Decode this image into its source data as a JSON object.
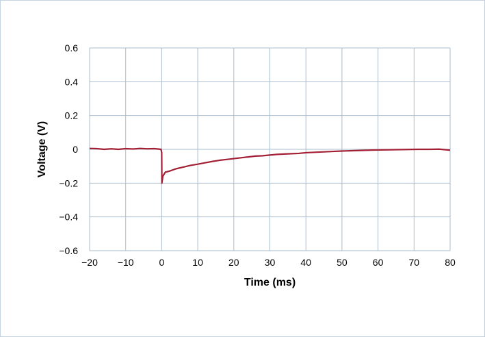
{
  "chart_data": {
    "type": "line",
    "title": "",
    "xlabel": "Time (ms)",
    "ylabel": "Voltage (V)",
    "xlim": [
      -20,
      80
    ],
    "ylim": [
      -0.6,
      0.6
    ],
    "x_ticks": [
      -20,
      -10,
      0,
      10,
      20,
      30,
      40,
      50,
      60,
      70,
      80
    ],
    "x_tick_labels": [
      "−20",
      "−10",
      "0",
      "10",
      "20",
      "30",
      "40",
      "50",
      "60",
      "70",
      "80"
    ],
    "y_ticks": [
      -0.6,
      -0.4,
      -0.2,
      0,
      0.2,
      0.4,
      0.6
    ],
    "y_tick_labels": [
      "−0.6",
      "−0.4",
      "−0.2",
      "0",
      "0.2",
      "0.4",
      "0.6"
    ],
    "grid": true,
    "legend": "none",
    "series": [
      {
        "color": "#a31f34",
        "points": [
          [
            -20,
            0.005
          ],
          [
            -18,
            0.004
          ],
          [
            -16,
            0.0
          ],
          [
            -14,
            0.003
          ],
          [
            -12,
            0.0
          ],
          [
            -10,
            0.004
          ],
          [
            -8,
            0.002
          ],
          [
            -6,
            0.005
          ],
          [
            -4,
            0.003
          ],
          [
            -2,
            0.004
          ],
          [
            -0.2,
            0.0
          ],
          [
            0,
            -0.02
          ],
          [
            0.05,
            -0.2
          ],
          [
            0.3,
            -0.16
          ],
          [
            1,
            -0.135
          ],
          [
            2,
            -0.13
          ],
          [
            4,
            -0.115
          ],
          [
            6,
            -0.105
          ],
          [
            8,
            -0.095
          ],
          [
            10,
            -0.088
          ],
          [
            12,
            -0.08
          ],
          [
            14,
            -0.072
          ],
          [
            16,
            -0.065
          ],
          [
            18,
            -0.06
          ],
          [
            20,
            -0.055
          ],
          [
            22,
            -0.05
          ],
          [
            24,
            -0.045
          ],
          [
            26,
            -0.04
          ],
          [
            28,
            -0.038
          ],
          [
            30,
            -0.034
          ],
          [
            32,
            -0.03
          ],
          [
            35,
            -0.027
          ],
          [
            38,
            -0.024
          ],
          [
            40,
            -0.02
          ],
          [
            42,
            -0.018
          ],
          [
            45,
            -0.015
          ],
          [
            48,
            -0.012
          ],
          [
            50,
            -0.01
          ],
          [
            53,
            -0.008
          ],
          [
            56,
            -0.006
          ],
          [
            59,
            -0.004
          ],
          [
            62,
            -0.003
          ],
          [
            65,
            -0.002
          ],
          [
            68,
            -0.001
          ],
          [
            71,
            0.0
          ],
          [
            74,
            0.0
          ],
          [
            77,
            0.001
          ],
          [
            80,
            -0.005
          ]
        ]
      }
    ]
  }
}
